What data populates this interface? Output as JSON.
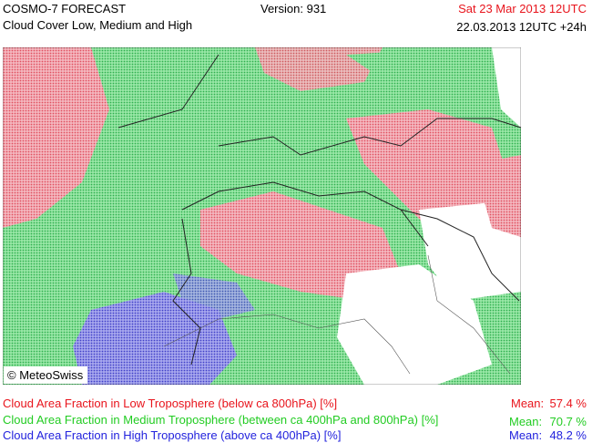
{
  "header": {
    "title": "COSMO-7 FORECAST",
    "subtitle": "Cloud Cover Low, Medium and High",
    "version": "Version: 931",
    "valid_time": "Sat 23 Mar 2013 12UTC",
    "run": "22.03.2013 12UTC +24h"
  },
  "map": {
    "credit": "© MeteoSwiss"
  },
  "legend": [
    {
      "label": "Cloud Area Fraction in Low Troposphere (below ca 800hPa) [%]",
      "mean_label": "Mean:",
      "mean": "57.4 %"
    },
    {
      "label": "Cloud Area Fraction in Medium Troposphere (between ca 400hPa and 800hPa) [%]",
      "mean_label": "Mean:",
      "mean": "70.7 %"
    },
    {
      "label": "Cloud Area Fraction in High Troposphere (above ca 400hPa) [%]",
      "mean_label": "Mean:",
      "mean": "48.2 %"
    }
  ]
}
